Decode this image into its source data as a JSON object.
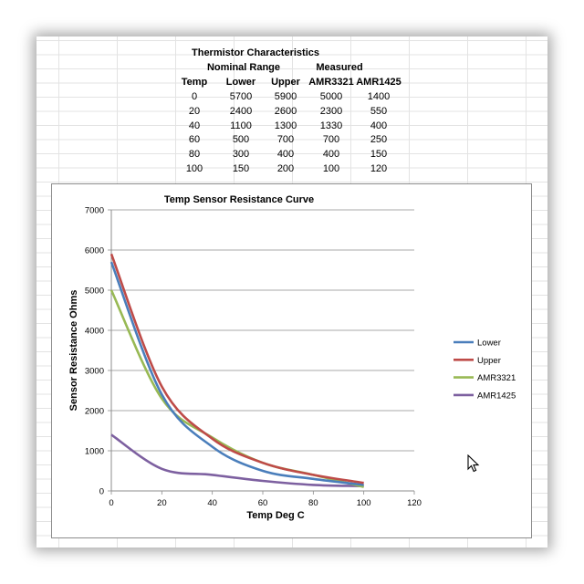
{
  "table": {
    "title": "Thermistor Characteristics",
    "group_headers": [
      "Nominal Range",
      "Measured"
    ],
    "columns": [
      "Temp",
      "Lower",
      "Upper",
      "AMR3321",
      "AMR1425"
    ],
    "rows": [
      [
        "0",
        "5700",
        "5900",
        "5000",
        "1400"
      ],
      [
        "20",
        "2400",
        "2600",
        "2300",
        "550"
      ],
      [
        "40",
        "1100",
        "1300",
        "1330",
        "400"
      ],
      [
        "60",
        "500",
        "700",
        "700",
        "250"
      ],
      [
        "80",
        "300",
        "400",
        "400",
        "150"
      ],
      [
        "100",
        "150",
        "200",
        "100",
        "120"
      ]
    ]
  },
  "chart_data": {
    "type": "line",
    "title": "Temp Sensor Resistance Curve",
    "xlabel": "Temp Deg C",
    "ylabel": "Sensor Resistance Ohms",
    "xlim": [
      0,
      120
    ],
    "ylim": [
      0,
      7000
    ],
    "xticks": [
      0,
      20,
      40,
      60,
      80,
      100,
      120
    ],
    "yticks": [
      0,
      1000,
      2000,
      3000,
      4000,
      5000,
      6000,
      7000
    ],
    "grid": "horizontal",
    "legend_position": "right",
    "x": [
      0,
      20,
      40,
      60,
      80,
      100
    ],
    "series": [
      {
        "name": "Lower",
        "color": "#4a7ebb",
        "values": [
          5700,
          2400,
          1100,
          500,
          300,
          150
        ]
      },
      {
        "name": "Upper",
        "color": "#be4b48",
        "values": [
          5900,
          2600,
          1300,
          700,
          400,
          200
        ]
      },
      {
        "name": "AMR3321",
        "color": "#98b954",
        "values": [
          5000,
          2300,
          1330,
          700,
          400,
          100
        ]
      },
      {
        "name": "AMR1425",
        "color": "#7d60a0",
        "values": [
          1400,
          550,
          400,
          250,
          150,
          120
        ]
      }
    ]
  }
}
